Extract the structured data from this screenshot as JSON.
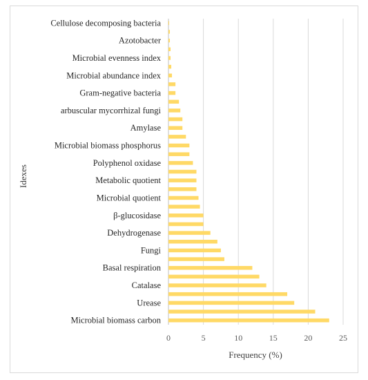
{
  "chart_data": {
    "type": "bar",
    "orientation": "horizontal",
    "xlabel": "Frequency (%)",
    "ylabel": "Idexes",
    "xlim": [
      0,
      25
    ],
    "x_ticks": [
      0,
      5,
      10,
      15,
      20,
      25
    ],
    "grid": "vertical",
    "bar_color": "#FFD966",
    "categories": [
      {
        "label": "Cellulose decomposing bacteria",
        "value": 0.1
      },
      {
        "label": "",
        "value": 0.2
      },
      {
        "label": "Azotobacter",
        "value": 0.2
      },
      {
        "label": "",
        "value": 0.3
      },
      {
        "label": "Microbial evenness index",
        "value": 0.3
      },
      {
        "label": "",
        "value": 0.4
      },
      {
        "label": "Microbial abundance index",
        "value": 0.5
      },
      {
        "label": "",
        "value": 1.0
      },
      {
        "label": "Gram-negative bacteria",
        "value": 1.0
      },
      {
        "label": "",
        "value": 1.5
      },
      {
        "label": "arbuscular mycorrhizal fungi",
        "value": 1.7
      },
      {
        "label": "",
        "value": 2.0
      },
      {
        "label": "Amylase",
        "value": 2.0
      },
      {
        "label": "",
        "value": 2.5
      },
      {
        "label": "Microbial biomass phosphorus",
        "value": 3.0
      },
      {
        "label": "",
        "value": 3.0
      },
      {
        "label": "Polyphenol oxidase",
        "value": 3.5
      },
      {
        "label": "",
        "value": 4.0
      },
      {
        "label": "Metabolic quotient",
        "value": 4.0
      },
      {
        "label": "",
        "value": 4.0
      },
      {
        "label": "Microbial quotient",
        "value": 4.3
      },
      {
        "label": "",
        "value": 4.5
      },
      {
        "label": "β-glucosidase",
        "value": 5.0
      },
      {
        "label": "",
        "value": 5.0
      },
      {
        "label": "Dehydrogenase",
        "value": 6.0
      },
      {
        "label": "",
        "value": 7.0
      },
      {
        "label": "Fungi",
        "value": 7.5
      },
      {
        "label": "",
        "value": 8.0
      },
      {
        "label": "Basal respiration",
        "value": 12.0
      },
      {
        "label": "",
        "value": 13.0
      },
      {
        "label": "Catalase",
        "value": 14.0
      },
      {
        "label": "",
        "value": 17.0
      },
      {
        "label": "Urease",
        "value": 18.0
      },
      {
        "label": "",
        "value": 21.0
      },
      {
        "label": "Microbial biomass carbon",
        "value": 23.0
      }
    ]
  }
}
